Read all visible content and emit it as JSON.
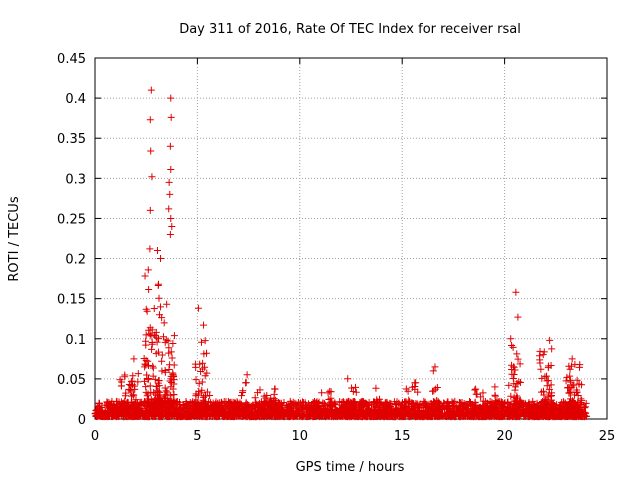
{
  "chart_data": {
    "type": "scatter",
    "title": "Day 311 of 2016, Rate Of TEC Index for receiver rsal",
    "xlabel": "GPS time / hours",
    "ylabel": "ROTI / TECUs",
    "xlim": [
      0,
      25
    ],
    "ylim": [
      0,
      0.45
    ],
    "x_ticks": [
      0,
      5,
      10,
      15,
      20,
      25
    ],
    "x_tick_labels": [
      "0",
      "5",
      "10",
      "15",
      "20",
      "25"
    ],
    "y_ticks": [
      0,
      0.05,
      0.1,
      0.15,
      0.2,
      0.25,
      0.3,
      0.35,
      0.4,
      0.45
    ],
    "y_tick_labels": [
      "0",
      "0.05",
      "0.1",
      "0.15",
      "0.2",
      "0.25",
      "0.3",
      "0.35",
      "0.4",
      "0.45"
    ],
    "grid": true,
    "grid_style": "dotted",
    "marker": "+",
    "color": "#e00000",
    "series": [
      {
        "name": "ROTI",
        "notable_points": [
          {
            "x": 2.75,
            "y": 0.41
          },
          {
            "x": 2.7,
            "y": 0.373
          },
          {
            "x": 2.72,
            "y": 0.334
          },
          {
            "x": 2.78,
            "y": 0.302
          },
          {
            "x": 2.7,
            "y": 0.26
          },
          {
            "x": 2.68,
            "y": 0.212
          },
          {
            "x": 3.05,
            "y": 0.21
          },
          {
            "x": 3.2,
            "y": 0.2
          },
          {
            "x": 3.1,
            "y": 0.168
          },
          {
            "x": 3.15,
            "y": 0.13
          },
          {
            "x": 3.7,
            "y": 0.4
          },
          {
            "x": 3.72,
            "y": 0.376
          },
          {
            "x": 3.68,
            "y": 0.34
          },
          {
            "x": 3.7,
            "y": 0.311
          },
          {
            "x": 3.62,
            "y": 0.295
          },
          {
            "x": 3.65,
            "y": 0.28
          },
          {
            "x": 3.6,
            "y": 0.262
          },
          {
            "x": 3.7,
            "y": 0.25
          },
          {
            "x": 3.75,
            "y": 0.24
          },
          {
            "x": 3.68,
            "y": 0.23
          },
          {
            "x": 3.5,
            "y": 0.143
          },
          {
            "x": 5.05,
            "y": 0.138
          },
          {
            "x": 5.3,
            "y": 0.117
          },
          {
            "x": 20.55,
            "y": 0.158
          },
          {
            "x": 20.65,
            "y": 0.127
          },
          {
            "x": 22.2,
            "y": 0.098
          },
          {
            "x": 20.3,
            "y": 0.1
          },
          {
            "x": 1.9,
            "y": 0.075
          },
          {
            "x": 16.6,
            "y": 0.065
          },
          {
            "x": 23.3,
            "y": 0.075
          }
        ],
        "bursts": [
          {
            "x_from": 0,
            "x_to": 24,
            "y_min": 0.003,
            "y_max": 0.022,
            "density": 2.2
          },
          {
            "x_from": 1.2,
            "x_to": 2.2,
            "y_min": 0.01,
            "y_max": 0.06,
            "density": 0.8
          },
          {
            "x_from": 2.4,
            "x_to": 3.0,
            "y_min": 0.02,
            "y_max": 0.19,
            "density": 1.6
          },
          {
            "x_from": 3.0,
            "x_to": 3.4,
            "y_min": 0.02,
            "y_max": 0.17,
            "density": 1.6
          },
          {
            "x_from": 3.4,
            "x_to": 3.9,
            "y_min": 0.02,
            "y_max": 0.11,
            "density": 1.8
          },
          {
            "x_from": 4.9,
            "x_to": 5.6,
            "y_min": 0.01,
            "y_max": 0.1,
            "density": 1.4
          },
          {
            "x_from": 7.1,
            "x_to": 7.5,
            "y_min": 0.005,
            "y_max": 0.06,
            "density": 0.8
          },
          {
            "x_from": 7.8,
            "x_to": 9.0,
            "y_min": 0.005,
            "y_max": 0.04,
            "density": 0.8
          },
          {
            "x_from": 10.8,
            "x_to": 11.6,
            "y_min": 0.005,
            "y_max": 0.035,
            "density": 0.8
          },
          {
            "x_from": 12.3,
            "x_to": 12.8,
            "y_min": 0.005,
            "y_max": 0.055,
            "density": 0.8
          },
          {
            "x_from": 13.6,
            "x_to": 14.2,
            "y_min": 0.005,
            "y_max": 0.04,
            "density": 0.7
          },
          {
            "x_from": 15.2,
            "x_to": 15.8,
            "y_min": 0.005,
            "y_max": 0.05,
            "density": 0.7
          },
          {
            "x_from": 16.4,
            "x_to": 16.8,
            "y_min": 0.005,
            "y_max": 0.06,
            "density": 0.8
          },
          {
            "x_from": 18.5,
            "x_to": 19.0,
            "y_min": 0.005,
            "y_max": 0.045,
            "density": 0.7
          },
          {
            "x_from": 19.4,
            "x_to": 19.7,
            "y_min": 0.005,
            "y_max": 0.045,
            "density": 0.7
          },
          {
            "x_from": 20.2,
            "x_to": 20.8,
            "y_min": 0.01,
            "y_max": 0.1,
            "density": 1.2
          },
          {
            "x_from": 21.7,
            "x_to": 22.3,
            "y_min": 0.01,
            "y_max": 0.09,
            "density": 1.2
          },
          {
            "x_from": 23.0,
            "x_to": 23.8,
            "y_min": 0.005,
            "y_max": 0.07,
            "density": 1.2
          }
        ]
      }
    ]
  }
}
